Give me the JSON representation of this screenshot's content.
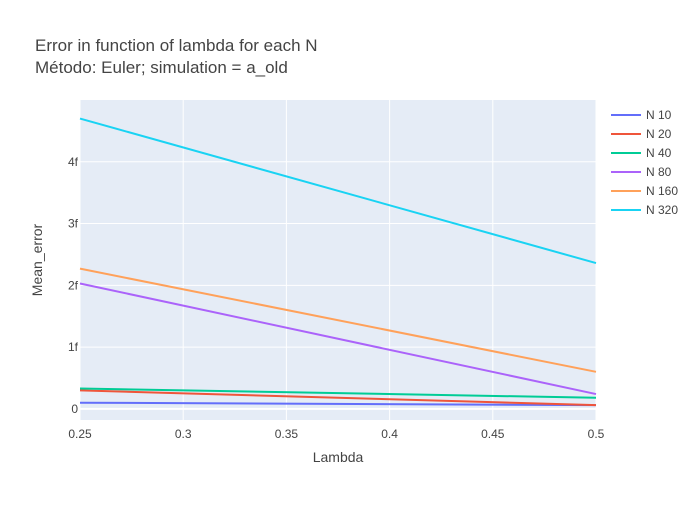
{
  "chart_data": {
    "type": "line",
    "title_line1": "Error in function of lambda for each N",
    "title_line2": "Método: Euler; simulation = a_old",
    "xlabel": "Lambda",
    "ylabel": "Mean_error",
    "xlim": [
      0.25,
      0.5
    ],
    "ylim": [
      -0.18,
      5.0
    ],
    "x_ticks": [
      0.25,
      0.3,
      0.35,
      0.4,
      0.45,
      0.5
    ],
    "x_tick_labels": [
      "0.25",
      "0.3",
      "0.35",
      "0.4",
      "0.45",
      "0.5"
    ],
    "y_ticks": [
      0,
      1,
      2,
      3,
      4
    ],
    "y_tick_labels": [
      "0",
      "1f",
      "2f",
      "3f",
      "4f"
    ],
    "grid": true,
    "legend_position": "top-right",
    "x": [
      0.25,
      0.5
    ],
    "series": [
      {
        "name": "N 10",
        "color": "#636efa",
        "values": [
          0.1,
          0.06
        ]
      },
      {
        "name": "N 20",
        "color": "#ef553b",
        "values": [
          0.3,
          0.06
        ]
      },
      {
        "name": "N 40",
        "color": "#00cc96",
        "values": [
          0.33,
          0.18
        ]
      },
      {
        "name": "N 80",
        "color": "#ab63fa",
        "values": [
          2.03,
          0.24
        ]
      },
      {
        "name": "N 160",
        "color": "#ffa15a",
        "values": [
          2.27,
          0.6
        ]
      },
      {
        "name": "N 320",
        "color": "#19d3f3",
        "values": [
          4.7,
          2.36
        ]
      }
    ]
  }
}
